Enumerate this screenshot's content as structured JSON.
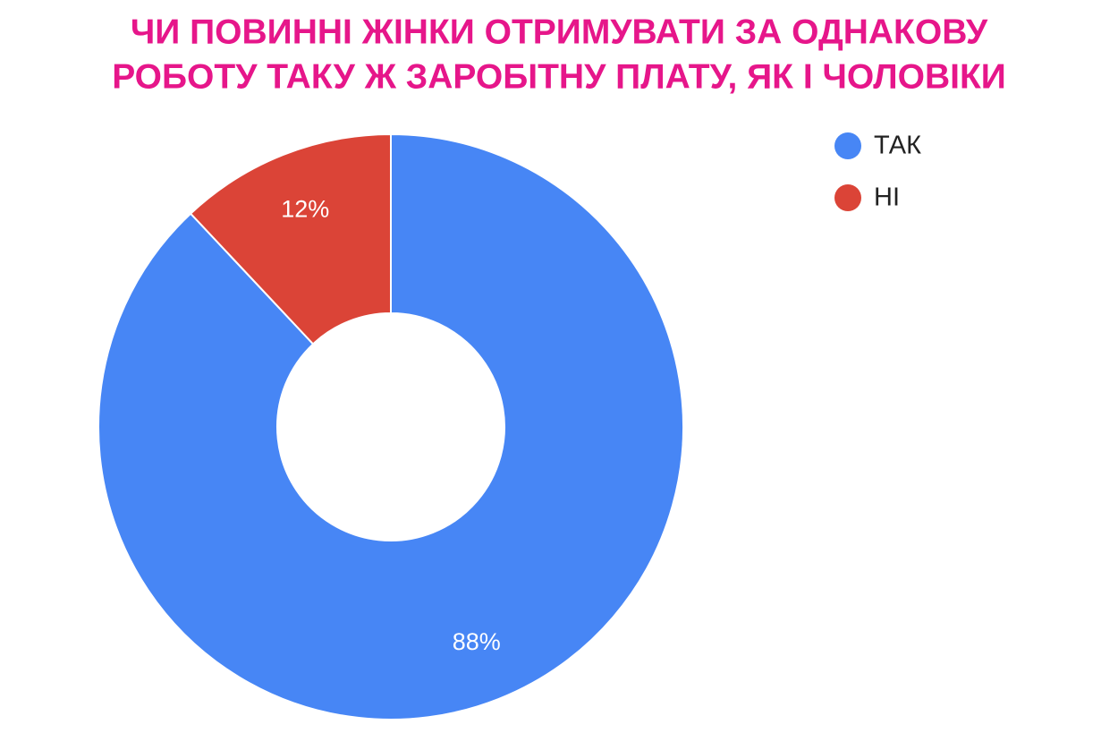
{
  "chart_data": {
    "type": "pie",
    "title": [
      "ЧИ ПОВИННІ ЖІНКИ ОТРИМУВАТИ ЗА ОДНАКОВУ",
      "РОБОТУ ТАКУ Ж ЗАРОБІТНУ ПЛАТУ, ЯК І ЧОЛОВІКИ"
    ],
    "categories": [
      "ТАК",
      "НІ"
    ],
    "values": [
      88,
      12
    ],
    "value_labels": [
      "88%",
      "12%"
    ],
    "colors": [
      "#4786f5",
      "#db4437"
    ],
    "donut": true,
    "legend": "right"
  }
}
